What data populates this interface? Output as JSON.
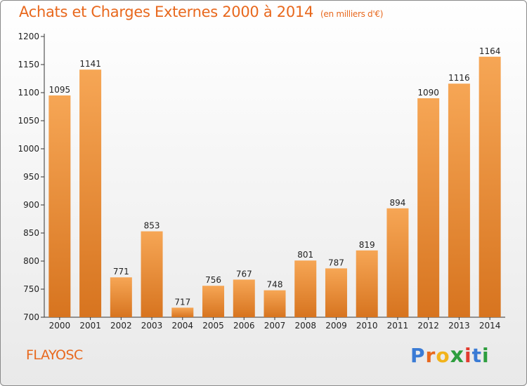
{
  "chart_data": {
    "type": "bar",
    "title": "Achats et Charges Externes 2000 à 2014",
    "unit": "(en milliers d'€)",
    "categories": [
      "2000",
      "2001",
      "2002",
      "2003",
      "2004",
      "2005",
      "2006",
      "2007",
      "2008",
      "2009",
      "2010",
      "2011",
      "2012",
      "2013",
      "2014"
    ],
    "values": [
      1095,
      1141,
      771,
      853,
      717,
      756,
      767,
      748,
      801,
      787,
      819,
      894,
      1090,
      1116,
      1164
    ],
    "yticks": [
      700,
      750,
      800,
      850,
      900,
      950,
      1000,
      1050,
      1100,
      1150,
      1200
    ],
    "ylim": [
      700,
      1200
    ],
    "grid": false,
    "bar_color": "#f0923a"
  },
  "footer": {
    "commune": "FLAYOSC",
    "logo_letters": [
      "P",
      "r",
      "o",
      "x",
      "i",
      "t",
      "i"
    ],
    "logo_colors": [
      "#3a7bd5",
      "#e8681d",
      "#f2b31b",
      "#2e9e3e",
      "#e23b2f",
      "#3a7bd5",
      "#2e9e3e"
    ]
  }
}
